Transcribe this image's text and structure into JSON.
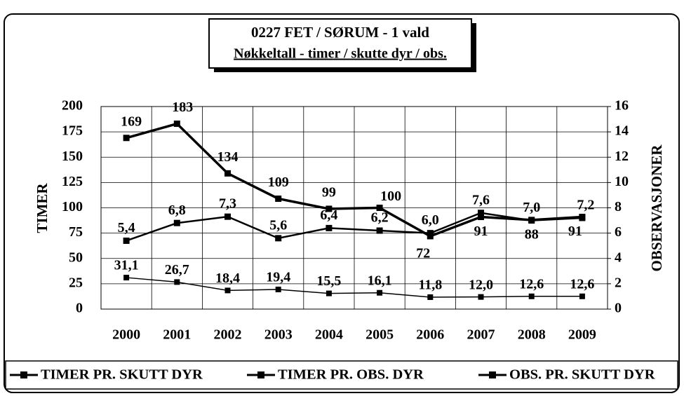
{
  "chart_data": {
    "type": "line",
    "title": [
      "0227  FET /  SØRUM - 1 vald",
      "Nøkkeltall - timer / skutte dyr / obs."
    ],
    "ylabel": "TIMER",
    "y2label": "OBSERVASJONER",
    "categories": [
      "2000",
      "2001",
      "2002",
      "2003",
      "2004",
      "2005",
      "2006",
      "2007",
      "2008",
      "2009"
    ],
    "ylim": [
      0,
      200
    ],
    "yticks": [
      0,
      25,
      50,
      75,
      100,
      125,
      150,
      175,
      200
    ],
    "y2lim": [
      0,
      16
    ],
    "y2ticks": [
      0,
      2,
      4,
      6,
      8,
      10,
      12,
      14,
      16
    ],
    "grid": true,
    "series": [
      {
        "name": "TIMER PR. SKUTT DYR",
        "color": "#000000",
        "values": [
          169,
          183,
          134,
          109,
          99,
          100,
          72,
          91,
          88,
          91
        ]
      },
      {
        "name": "TIMER PR. OBS. DYR",
        "color": "#000000",
        "values": [
          31.1,
          26.7,
          18.4,
          19.4,
          15.5,
          16.1,
          11.8,
          12.0,
          12.6,
          12.6
        ],
        "value_labels": [
          "31,1",
          "26,7",
          "18,4",
          "19,4",
          "15,5",
          "16,1",
          "11,8",
          "12,0",
          "12,6",
          "12,6"
        ]
      },
      {
        "name": "OBS. PR. SKUTT DYR",
        "color": "#000000",
        "axis": "y2",
        "values": [
          5.4,
          6.8,
          7.3,
          5.6,
          6.4,
          6.2,
          6.0,
          7.6,
          7.0,
          7.2
        ],
        "value_labels": [
          "5,4",
          "6,8",
          "7,3",
          "5,6",
          "6,4",
          "6,2",
          "6,0",
          "7,6",
          "7,0",
          "7,2"
        ]
      }
    ]
  }
}
